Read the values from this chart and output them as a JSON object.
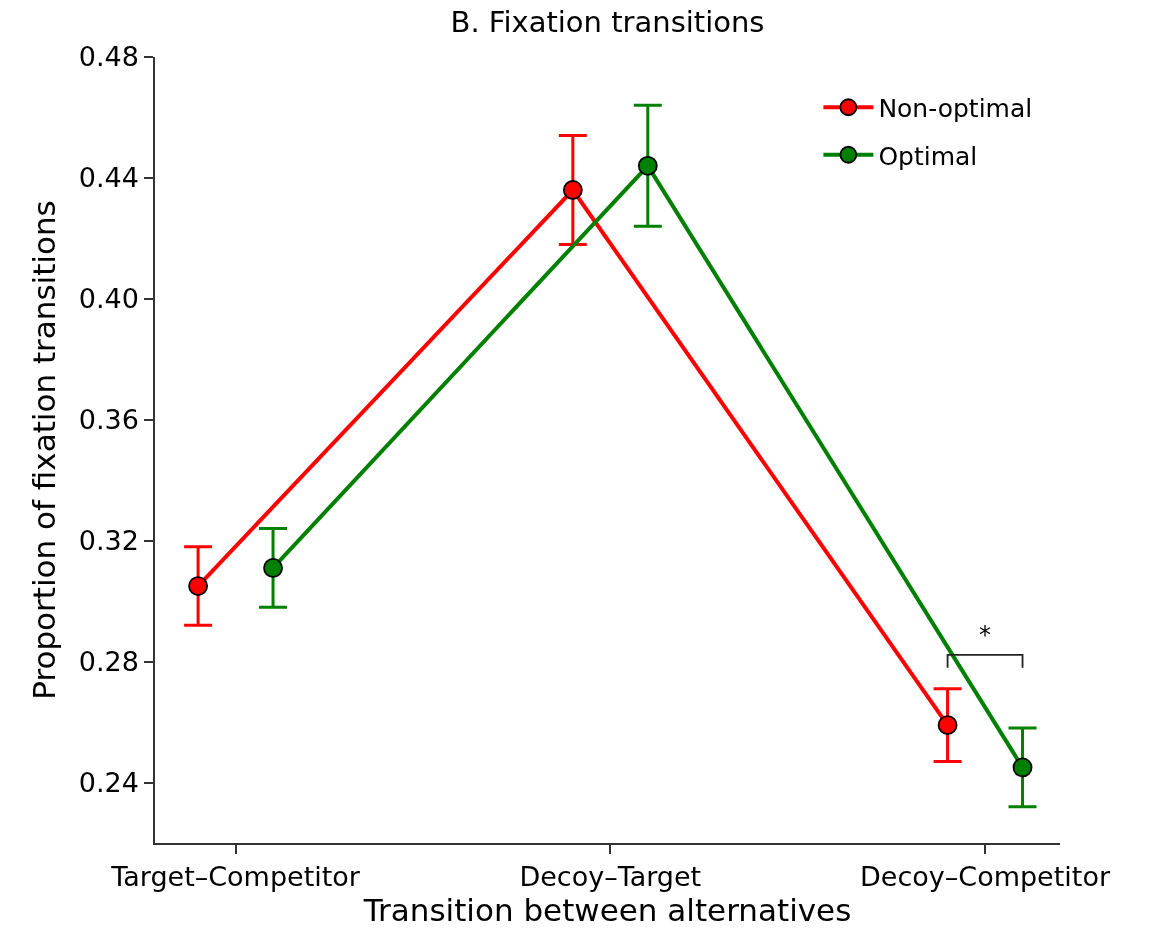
{
  "chart_data": {
    "type": "line",
    "title": "B. Fixation transitions",
    "xlabel": "Transition between alternatives",
    "ylabel": "Proportion of fixation transitions",
    "categories": [
      "Target–Competitor",
      "Decoy–Target",
      "Decoy–Competitor"
    ],
    "series": [
      {
        "name": "Non-optimal",
        "color": "#ff0000",
        "values": [
          0.305,
          0.436,
          0.259
        ],
        "errors": [
          0.013,
          0.018,
          0.012
        ]
      },
      {
        "name": "Optimal",
        "color": "#008000",
        "values": [
          0.311,
          0.444,
          0.245
        ],
        "errors": [
          0.013,
          0.02,
          0.013
        ]
      }
    ],
    "ylim": [
      0.22,
      0.48
    ],
    "yticks": [
      0.24,
      0.28,
      0.32,
      0.36,
      {
        "value": 0.4,
        "label": "0.40"
      },
      0.44,
      0.48
    ],
    "marker": "circle",
    "line_style": "solid",
    "legend": "top right",
    "annotations": [
      "*"
    ]
  }
}
